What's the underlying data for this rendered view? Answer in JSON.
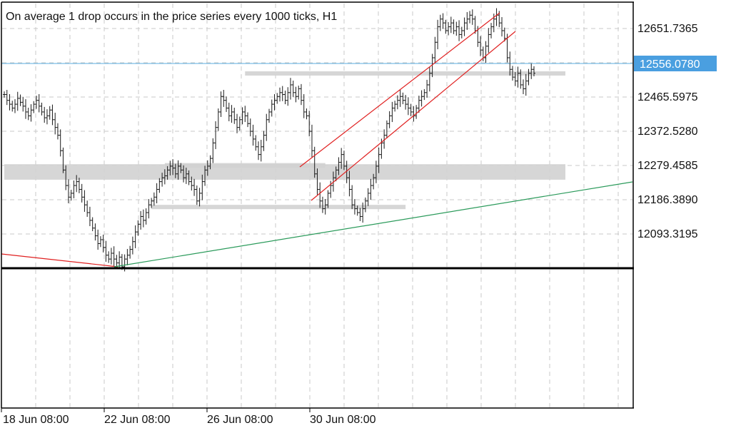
{
  "chart_data": {
    "type": "bar",
    "subtype": "ohlc",
    "title": "On average 1 drop occurs in the price series every 1000 ticks, H1",
    "y_tick_labels": [
      "12651.7365",
      "12465.5975",
      "12372.5280",
      "12279.4585",
      "12186.3890",
      "12093.3195"
    ],
    "x_tick_labels": [
      "18 Jun 08:00",
      "22 Jun 08:00",
      "26 Jun 08:00",
      "30 Jun 08:00"
    ],
    "current_price": "12556.0780",
    "ylim": [
      12040,
      12720
    ],
    "grid": true,
    "colors": {
      "bars": "#1a1a1a",
      "grid": "#c8c8c8",
      "price_line": "#5aaee0",
      "price_tag": "#4a9fe0",
      "zones": "#d2d2d2",
      "channel": "#e02020",
      "trend": "#2a9a5a",
      "frame": "#000000"
    },
    "series": [
      {
        "values": [
          12485,
          12470,
          12460,
          12450,
          12460,
          12475,
          12465,
          12455,
          12440,
          12430,
          12445,
          12460,
          12470,
          12455,
          12440,
          12425,
          12430,
          12445,
          12420,
          12400,
          12380,
          12340,
          12290,
          12250,
          12220,
          12230,
          12250,
          12260,
          12240,
          12220,
          12200,
          12180,
          12160,
          12140,
          12120,
          12100,
          12110,
          12090,
          12070,
          12060,
          12075,
          12060,
          12050,
          12065,
          12040,
          12060,
          12070,
          12085,
          12105,
          12130,
          12150,
          12170,
          12160,
          12180,
          12200,
          12210,
          12220,
          12240,
          12260,
          12270,
          12275,
          12290,
          12300,
          12295,
          12280,
          12300,
          12290,
          12270,
          12280,
          12260,
          12250,
          12240,
          12210,
          12230,
          12260,
          12290,
          12300,
          12320,
          12360,
          12400,
          12440,
          12480,
          12470,
          12450,
          12430,
          12440,
          12420,
          12400,
          12420,
          12440,
          12430,
          12410,
          12390,
          12370,
          12350,
          12330,
          12350,
          12380,
          12420,
          12440,
          12460,
          12470,
          12480,
          12490,
          12485,
          12470,
          12490,
          12510,
          12490,
          12480,
          12500,
          12470,
          12440,
          12430,
          12390,
          12340,
          12280,
          12240,
          12210,
          12190,
          12200,
          12230,
          12250,
          12270,
          12290,
          12310,
          12330,
          12300,
          12270,
          12240,
          12200,
          12190,
          12180,
          12170,
          12190,
          12210,
          12230,
          12250,
          12270,
          12300,
          12330,
          12360,
          12380,
          12410,
          12430,
          12450,
          12460,
          12470,
          12480,
          12470,
          12460,
          12450,
          12440,
          12430,
          12450,
          12470,
          12480,
          12490,
          12510,
          12540,
          12580,
          12620,
          12660,
          12680,
          12670,
          12650,
          12660,
          12670,
          12650,
          12660,
          12640,
          12650,
          12670,
          12680,
          12690,
          12680,
          12650,
          12620,
          12600,
          12580,
          12610,
          12640,
          12660,
          12680,
          12690,
          12670,
          12650,
          12630,
          12580,
          12550,
          12530,
          12520,
          12540,
          12510,
          12500,
          12520,
          12540,
          12550,
          12540
        ]
      }
    ],
    "zones": [
      {
        "from": 12539,
        "to": 12545,
        "x_start_bar": 90,
        "x_end_bar": 245
      },
      {
        "from": 12296,
        "to": 12308,
        "x_start_bar": 60,
        "x_end_bar": 120
      },
      {
        "from": 12265,
        "to": 12305,
        "x_start_bar": 0,
        "x_end_bar": 245
      },
      {
        "from": 12193,
        "to": 12200,
        "x_start_bar": 55,
        "x_end_bar": 150
      }
    ]
  }
}
